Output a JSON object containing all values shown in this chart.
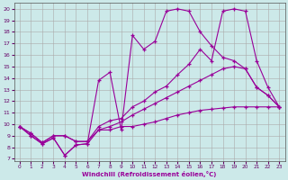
{
  "xlabel": "Windchill (Refroidissement éolien,°C)",
  "x_ticks": [
    0,
    1,
    2,
    3,
    4,
    5,
    6,
    7,
    8,
    9,
    10,
    11,
    12,
    13,
    14,
    15,
    16,
    17,
    18,
    19,
    20,
    21,
    22,
    23
  ],
  "y_ticks": [
    7,
    8,
    9,
    10,
    11,
    12,
    13,
    14,
    15,
    16,
    17,
    18,
    19,
    20
  ],
  "ylim": [
    6.8,
    20.5
  ],
  "xlim": [
    -0.5,
    23.5
  ],
  "bg_color": "#cce9e9",
  "line_color": "#990099",
  "grid_color": "#aaaaaa",
  "line1": [
    9.8,
    9.0,
    8.3,
    8.8,
    7.3,
    8.2,
    8.3,
    9.5,
    9.5,
    9.8,
    9.8,
    10.0,
    10.2,
    10.5,
    10.8,
    11.0,
    11.2,
    11.3,
    11.4,
    11.5,
    11.5,
    11.5,
    11.5,
    11.5
  ],
  "line2": [
    9.8,
    9.2,
    8.4,
    9.0,
    9.0,
    8.5,
    8.5,
    9.5,
    9.8,
    10.2,
    10.8,
    11.3,
    11.8,
    12.3,
    12.8,
    13.3,
    13.8,
    14.3,
    14.8,
    15.0,
    14.8,
    13.2,
    12.5,
    11.5
  ],
  "line3": [
    9.8,
    9.2,
    8.4,
    9.0,
    9.0,
    8.5,
    8.5,
    9.8,
    10.3,
    10.5,
    11.5,
    12.0,
    12.8,
    13.3,
    14.3,
    15.2,
    16.5,
    15.5,
    19.8,
    20.0,
    19.8,
    15.5,
    13.2,
    11.5
  ],
  "line4": [
    9.8,
    9.0,
    8.3,
    8.8,
    7.3,
    8.2,
    8.3,
    13.8,
    14.5,
    9.5,
    17.7,
    16.5,
    17.2,
    19.8,
    20.0,
    19.8,
    18.0,
    16.8,
    15.8,
    15.5,
    14.8,
    13.2,
    12.5,
    11.5
  ]
}
